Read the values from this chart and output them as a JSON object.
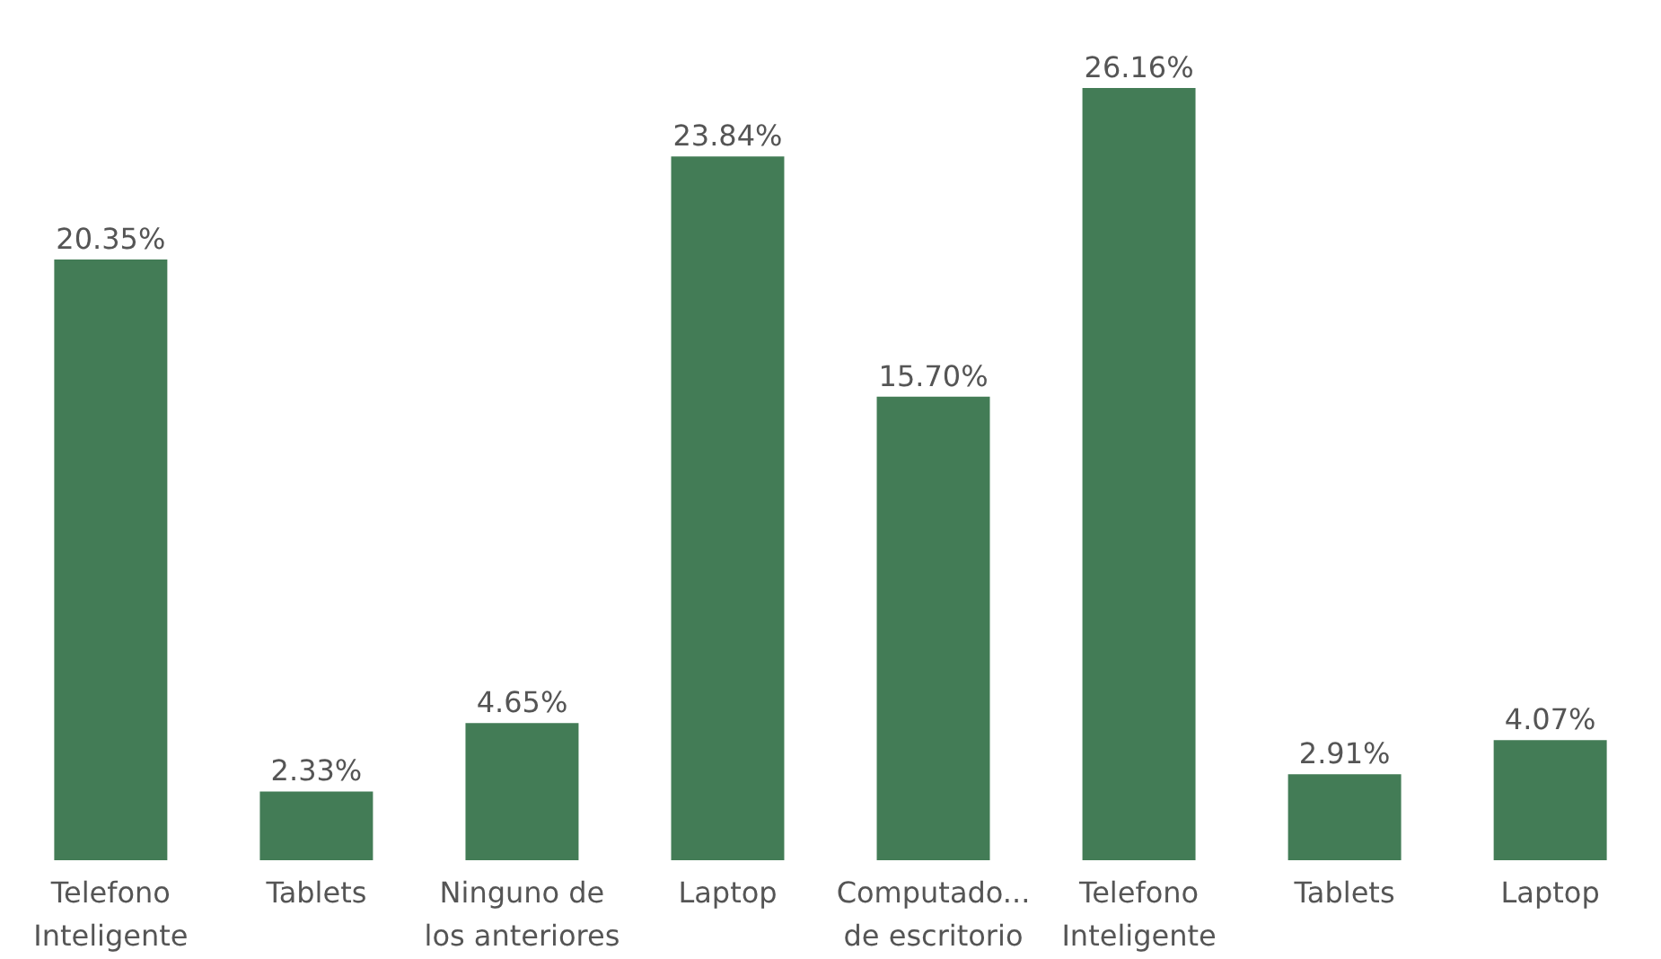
{
  "chart_data": {
    "type": "bar",
    "categories": [
      "Telefono\nInteligente",
      "Tablets",
      "Ninguno de\nlos anteriores",
      "Laptop",
      "Computado...\nde escritorio",
      "Telefono\nInteligente",
      "Tablets",
      "Laptop"
    ],
    "values": [
      20.35,
      2.33,
      4.65,
      23.84,
      15.7,
      26.16,
      2.91,
      4.07
    ],
    "value_labels": [
      "20.35%",
      "2.33%",
      "4.65%",
      "23.84%",
      "15.70%",
      "26.16%",
      "2.91%",
      "4.07%"
    ],
    "color": "#437c56"
  }
}
